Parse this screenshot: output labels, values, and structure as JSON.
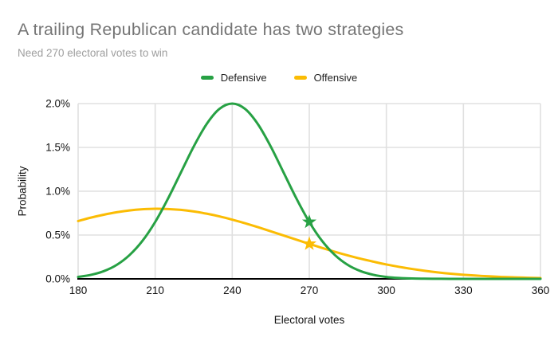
{
  "chart_data": {
    "type": "line",
    "title": "A trailing Republican candidate has two strategies",
    "subtitle": "Need 270 electoral votes to win",
    "xlabel": "Electoral votes",
    "ylabel": "Probability",
    "xlim": [
      180,
      360
    ],
    "ylim": [
      0,
      2.0
    ],
    "grid": true,
    "legend_position": "top-center",
    "x_ticks": [
      {
        "value": 180,
        "label": "180"
      },
      {
        "value": 210,
        "label": "210"
      },
      {
        "value": 240,
        "label": "240"
      },
      {
        "value": 270,
        "label": "270"
      },
      {
        "value": 300,
        "label": "300"
      },
      {
        "value": 330,
        "label": "330"
      },
      {
        "value": 360,
        "label": "360"
      }
    ],
    "y_ticks": [
      {
        "value": 0.0,
        "label": "0.0%"
      },
      {
        "value": 0.5,
        "label": "0.5%"
      },
      {
        "value": 1.0,
        "label": "1.0%"
      },
      {
        "value": 1.5,
        "label": "1.5%"
      },
      {
        "value": 2.0,
        "label": "2.0%"
      }
    ],
    "x": [
      180,
      185,
      190,
      195,
      200,
      205,
      210,
      215,
      220,
      225,
      230,
      235,
      240,
      245,
      250,
      255,
      260,
      265,
      270,
      275,
      280,
      285,
      290,
      295,
      300,
      305,
      310,
      315,
      320,
      325,
      330,
      335,
      340,
      345,
      350,
      355,
      360
    ],
    "series": [
      {
        "name": "Offensive",
        "color": "#fbbc04",
        "values": [
          0.66,
          0.699,
          0.732,
          0.76,
          0.781,
          0.794,
          0.8,
          0.797,
          0.787,
          0.769,
          0.744,
          0.713,
          0.676,
          0.635,
          0.59,
          0.543,
          0.495,
          0.447,
          0.399,
          0.353,
          0.309,
          0.268,
          0.23,
          0.196,
          0.164,
          0.137,
          0.113,
          0.092,
          0.074,
          0.059,
          0.047,
          0.037,
          0.029,
          0.022,
          0.017,
          0.013,
          0.009
        ],
        "marker": {
          "shape": "star",
          "x": 270,
          "y": 0.399
        }
      },
      {
        "name": "Defensive",
        "color": "#27a144",
        "values": [
          0.022,
          0.046,
          0.088,
          0.159,
          0.271,
          0.432,
          0.649,
          0.916,
          1.213,
          1.51,
          1.765,
          1.939,
          2.0,
          1.939,
          1.765,
          1.51,
          1.213,
          0.916,
          0.649,
          0.432,
          0.271,
          0.159,
          0.088,
          0.046,
          0.022,
          0.01,
          0.004,
          0.002,
          0.001,
          0,
          0,
          0,
          0,
          0,
          0,
          0,
          0
        ],
        "marker": {
          "shape": "star",
          "x": 270,
          "y": 0.649
        }
      }
    ],
    "style": {
      "grid_color": "#e0e0e0",
      "axis_color": "#000000",
      "title_color": "#757575",
      "subtitle_color": "#9e9e9e",
      "tick_color": "#111111"
    }
  },
  "legend_display_order": [
    "Defensive",
    "Offensive"
  ]
}
